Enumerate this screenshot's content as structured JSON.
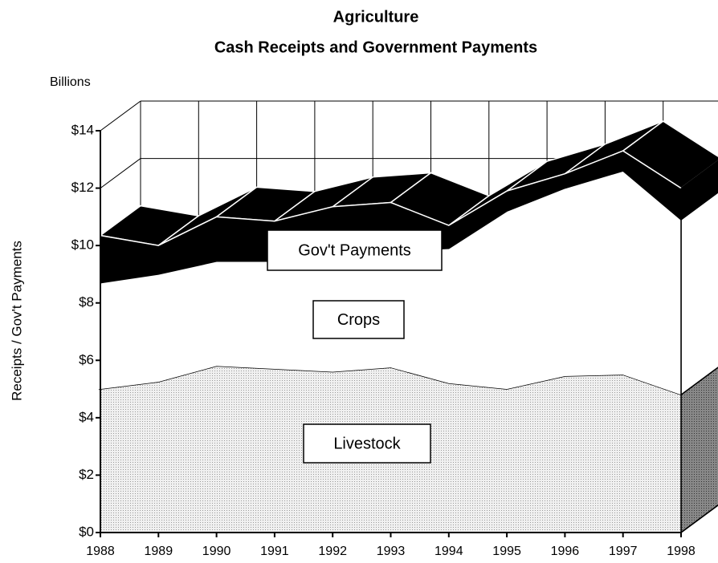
{
  "chart_data": {
    "type": "area",
    "stacked": true,
    "title": "Agriculture",
    "subtitle": "Cash Receipts and Government Payments",
    "unit_label": "Billions",
    "y_label": "Receipts / Gov't Payments",
    "categories": [
      "1988",
      "1989",
      "1990",
      "1991",
      "1992",
      "1993",
      "1994",
      "1995",
      "1996",
      "1997",
      "1998"
    ],
    "series": [
      {
        "name": "Livestock",
        "color": "#e6e6e6",
        "values": [
          5.0,
          5.25,
          5.8,
          5.7,
          5.6,
          5.75,
          5.2,
          5.0,
          5.45,
          5.5,
          4.8
        ]
      },
      {
        "name": "Crops",
        "color": "#ffffff",
        "values": [
          3.7,
          3.75,
          3.65,
          3.75,
          4.15,
          4.05,
          4.7,
          6.2,
          6.55,
          7.1,
          6.1
        ]
      },
      {
        "name": "Gov't Payments",
        "color": "#000000",
        "values": [
          1.65,
          1.0,
          1.55,
          1.4,
          1.6,
          1.7,
          0.8,
          0.7,
          0.5,
          0.7,
          1.1
        ]
      }
    ],
    "ylim": [
      0,
      14
    ],
    "yticks": [
      {
        "value": 0,
        "label": "$0"
      },
      {
        "value": 2,
        "label": "$2"
      },
      {
        "value": 4,
        "label": "$4"
      },
      {
        "value": 6,
        "label": "$6"
      },
      {
        "value": 8,
        "label": "$8"
      },
      {
        "value": 10,
        "label": "$10"
      },
      {
        "value": 12,
        "label": "$12"
      },
      {
        "value": 14,
        "label": "$14"
      }
    ],
    "grid": true
  }
}
